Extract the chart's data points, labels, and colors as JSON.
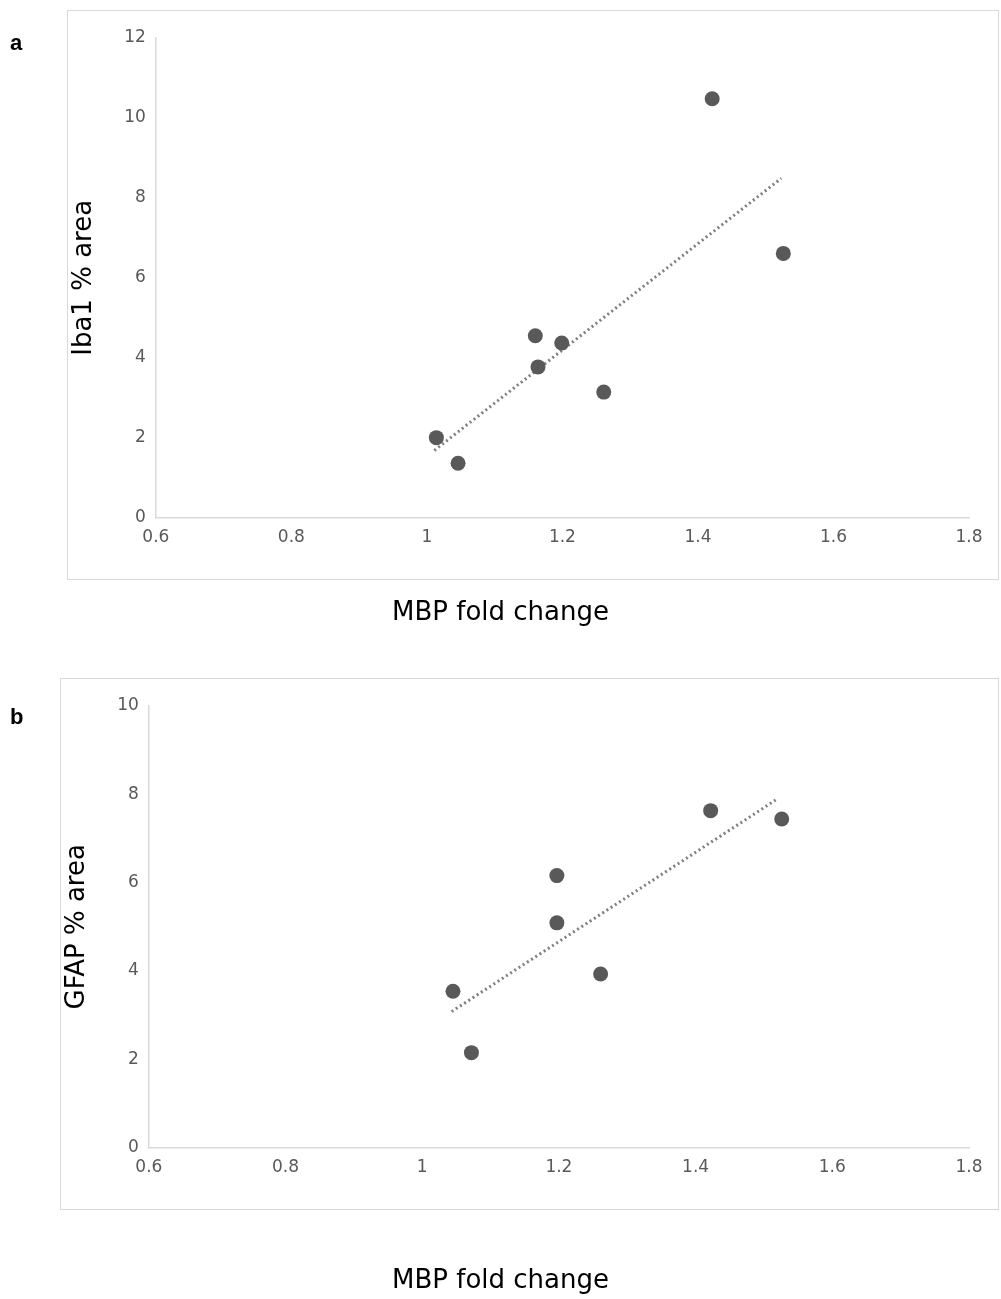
{
  "chart_data": [
    {
      "type": "scatter",
      "title": "a",
      "xlabel": "MBP fold change",
      "ylabel": "Iba1 % area",
      "xlim": [
        0.6,
        1.8
      ],
      "xticks": [
        0.6,
        0.8,
        1,
        1.2,
        1.4,
        1.6,
        1.8
      ],
      "ylim": [
        0,
        12
      ],
      "yticks": [
        0,
        2,
        4,
        6,
        8,
        10,
        12
      ],
      "grid": false,
      "legend": false,
      "series": [
        {
          "type": "scatter",
          "color": "#595959",
          "marker": "circle",
          "x": [
            1.014,
            1.046,
            1.16,
            1.164,
            1.199,
            1.261,
            1.421,
            1.526
          ],
          "values": [
            2.0,
            1.36,
            4.55,
            3.77,
            4.37,
            3.14,
            10.48,
            6.61
          ]
        },
        {
          "type": "line",
          "color": "#7f7f7f",
          "line_style": "dotted",
          "marker": "none",
          "x": [
            1.011,
            1.523
          ],
          "values": [
            1.68,
            8.49
          ]
        }
      ]
    },
    {
      "type": "scatter",
      "title": "b",
      "xlabel": "MBP fold change",
      "ylabel": "GFAP % area",
      "xlim": [
        0.6,
        1.8
      ],
      "xticks": [
        0.6,
        0.8,
        1,
        1.2,
        1.4,
        1.6,
        1.8
      ],
      "ylim": [
        0,
        10
      ],
      "yticks": [
        0,
        2,
        4,
        6,
        8,
        10
      ],
      "grid": false,
      "legend": false,
      "series": [
        {
          "type": "scatter",
          "color": "#595959",
          "marker": "circle",
          "x": [
            1.045,
            1.072,
            1.197,
            1.197,
            1.261,
            1.422,
            1.526
          ],
          "values": [
            3.54,
            2.15,
            6.16,
            5.09,
            3.93,
            7.63,
            7.44
          ]
        },
        {
          "type": "line",
          "color": "#7f7f7f",
          "line_style": "dotted",
          "marker": "none",
          "x": [
            1.043,
            1.52
          ],
          "values": [
            3.08,
            7.9
          ]
        }
      ]
    }
  ]
}
